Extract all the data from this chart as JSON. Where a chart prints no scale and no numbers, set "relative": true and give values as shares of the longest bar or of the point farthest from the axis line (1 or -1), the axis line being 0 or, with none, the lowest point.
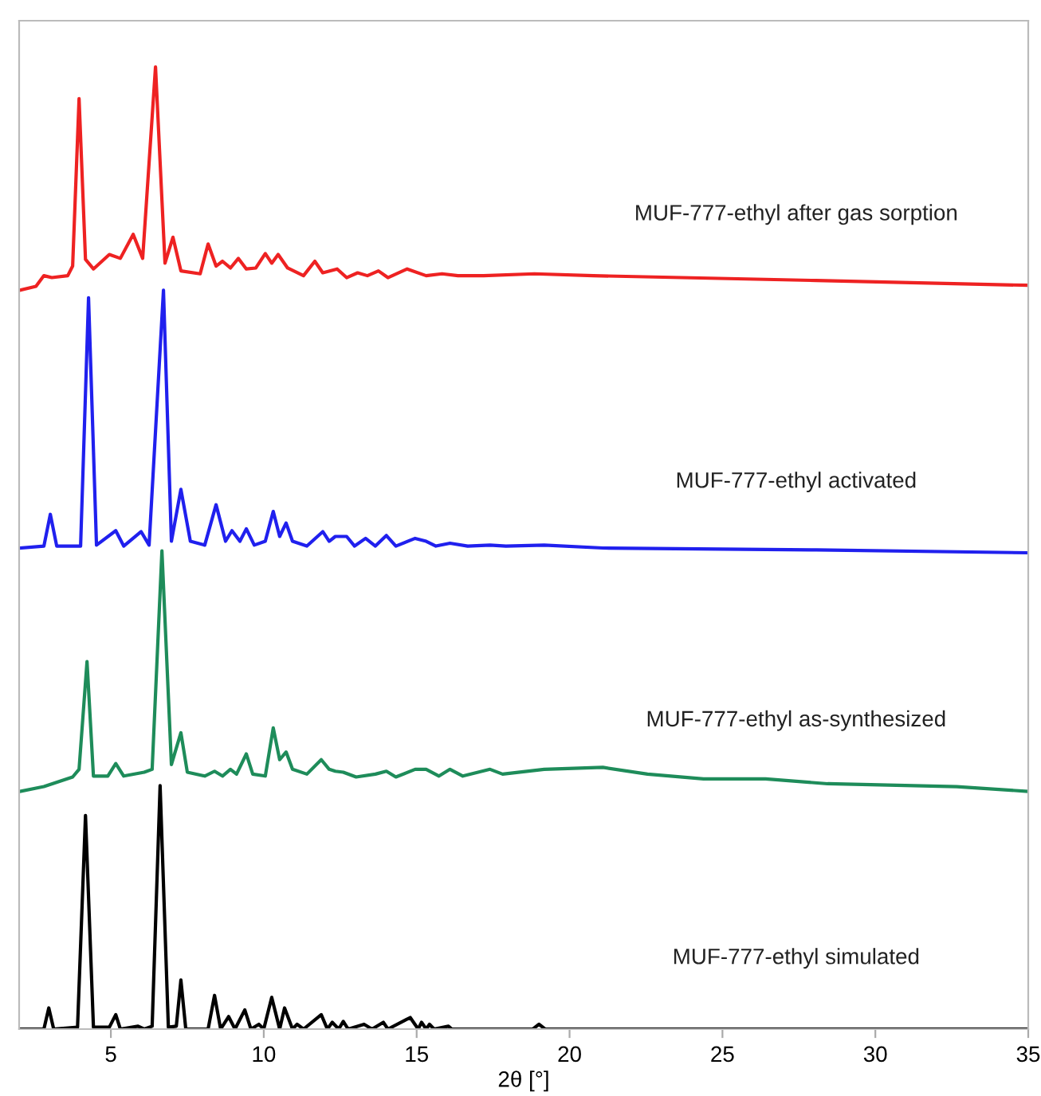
{
  "chart_data": {
    "type": "line",
    "relative": true,
    "xlabel": "2θ [°]",
    "xlim": [
      2,
      35
    ],
    "xticks": [
      5,
      10,
      15,
      20,
      25,
      30,
      35
    ],
    "grid": false,
    "legend": false,
    "marker": "none",
    "line_style": "solid",
    "series": [
      {
        "name": "MUF-777-ethyl after gas sorption",
        "color": "#ee2222",
        "x": [
          2.03,
          2.55,
          2.81,
          3.07,
          3.59,
          3.75,
          3.96,
          4.17,
          4.43,
          4.95,
          5.31,
          5.73,
          6.04,
          6.46,
          6.77,
          7.03,
          7.29,
          7.92,
          8.18,
          8.44,
          8.65,
          8.91,
          9.17,
          9.43,
          9.74,
          10.05,
          10.26,
          10.47,
          10.78,
          11.3,
          11.67,
          11.93,
          12.4,
          12.71,
          13.07,
          13.39,
          13.75,
          14.06,
          14.69,
          15.31,
          15.83,
          16.35,
          17.19,
          18.85,
          20.78,
          28.07,
          35.0
        ],
        "values": [
          0.768,
          0.772,
          0.783,
          0.781,
          0.783,
          0.793,
          0.967,
          0.8,
          0.79,
          0.805,
          0.801,
          0.826,
          0.801,
          1.0,
          0.796,
          0.823,
          0.788,
          0.785,
          0.816,
          0.793,
          0.798,
          0.791,
          0.801,
          0.79,
          0.791,
          0.806,
          0.796,
          0.805,
          0.791,
          0.783,
          0.798,
          0.786,
          0.79,
          0.781,
          0.786,
          0.783,
          0.788,
          0.781,
          0.79,
          0.783,
          0.785,
          0.783,
          0.783,
          0.785,
          0.783,
          0.778,
          0.773
        ]
      },
      {
        "name": "MUF-777-ethyl activated",
        "color": "#2020ee",
        "x": [
          2.03,
          2.81,
          3.02,
          3.23,
          4.01,
          4.27,
          4.53,
          5.16,
          5.42,
          5.99,
          6.25,
          6.72,
          6.98,
          7.29,
          7.6,
          8.07,
          8.44,
          8.75,
          8.96,
          9.22,
          9.43,
          9.69,
          10.05,
          10.31,
          10.52,
          10.73,
          10.94,
          11.41,
          11.93,
          12.14,
          12.34,
          12.71,
          12.97,
          13.33,
          13.65,
          14.01,
          14.32,
          14.95,
          15.31,
          15.63,
          16.09,
          16.67,
          17.4,
          17.92,
          19.17,
          21.09,
          28.07,
          35.0
        ],
        "values": [
          0.5,
          0.502,
          0.535,
          0.502,
          0.502,
          0.76,
          0.503,
          0.518,
          0.502,
          0.517,
          0.503,
          0.768,
          0.507,
          0.561,
          0.507,
          0.503,
          0.545,
          0.507,
          0.518,
          0.507,
          0.52,
          0.503,
          0.507,
          0.538,
          0.512,
          0.526,
          0.507,
          0.502,
          0.517,
          0.507,
          0.512,
          0.512,
          0.502,
          0.51,
          0.502,
          0.513,
          0.502,
          0.51,
          0.507,
          0.502,
          0.505,
          0.502,
          0.503,
          0.502,
          0.503,
          0.5,
          0.498,
          0.495
        ]
      },
      {
        "name": "MUF-777-ethyl as-synthesized",
        "color": "#1e8c5a",
        "x": [
          2.03,
          2.81,
          3.75,
          3.96,
          4.22,
          4.43,
          4.9,
          5.16,
          5.42,
          6.09,
          6.35,
          6.67,
          6.98,
          7.29,
          7.5,
          8.07,
          8.39,
          8.65,
          8.91,
          9.11,
          9.43,
          9.64,
          10.05,
          10.31,
          10.52,
          10.73,
          10.94,
          11.41,
          11.88,
          12.14,
          12.34,
          12.6,
          13.02,
          13.65,
          14.01,
          14.32,
          14.95,
          15.31,
          15.73,
          16.09,
          16.51,
          17.4,
          17.81,
          19.17,
          21.09,
          22.55,
          24.38,
          26.41,
          28.44,
          32.66,
          35.0
        ],
        "values": [
          0.247,
          0.252,
          0.262,
          0.27,
          0.382,
          0.263,
          0.263,
          0.276,
          0.263,
          0.267,
          0.27,
          0.497,
          0.275,
          0.308,
          0.267,
          0.263,
          0.268,
          0.263,
          0.27,
          0.265,
          0.286,
          0.265,
          0.263,
          0.313,
          0.28,
          0.288,
          0.27,
          0.265,
          0.28,
          0.27,
          0.268,
          0.267,
          0.262,
          0.265,
          0.268,
          0.262,
          0.27,
          0.27,
          0.263,
          0.27,
          0.263,
          0.27,
          0.265,
          0.27,
          0.272,
          0.265,
          0.26,
          0.26,
          0.255,
          0.252,
          0.247
        ]
      },
      {
        "name": "MUF-777-ethyl simulated",
        "color": "#000000",
        "x": [
          2.03,
          2.81,
          2.97,
          3.13,
          3.91,
          4.17,
          4.43,
          4.95,
          5.16,
          5.31,
          5.89,
          6.09,
          6.35,
          6.61,
          6.88,
          7.14,
          7.29,
          7.45,
          8.18,
          8.39,
          8.59,
          8.85,
          9.06,
          9.38,
          9.58,
          9.84,
          10.0,
          10.26,
          10.52,
          10.68,
          10.94,
          11.09,
          11.3,
          11.88,
          12.08,
          12.24,
          12.45,
          12.6,
          12.76,
          13.28,
          13.54,
          13.91,
          14.06,
          14.79,
          15.05,
          15.16,
          15.31,
          15.42,
          15.57,
          16.04,
          16.15,
          18.8,
          19.0,
          19.2,
          35.0
        ],
        "values": [
          0,
          0,
          0.022,
          0,
          0.002,
          0.222,
          0.002,
          0.002,
          0.015,
          0,
          0.003,
          0,
          0.003,
          0.253,
          0.002,
          0.003,
          0.051,
          0,
          0,
          0.035,
          0,
          0.013,
          0,
          0.02,
          0,
          0.005,
          0,
          0.033,
          0,
          0.022,
          0,
          0.005,
          0,
          0.015,
          0,
          0.007,
          0,
          0.008,
          0,
          0.005,
          0,
          0.007,
          0,
          0.012,
          0,
          0.007,
          0,
          0.005,
          0,
          0.003,
          0,
          0,
          0.005,
          0,
          0
        ]
      }
    ]
  }
}
